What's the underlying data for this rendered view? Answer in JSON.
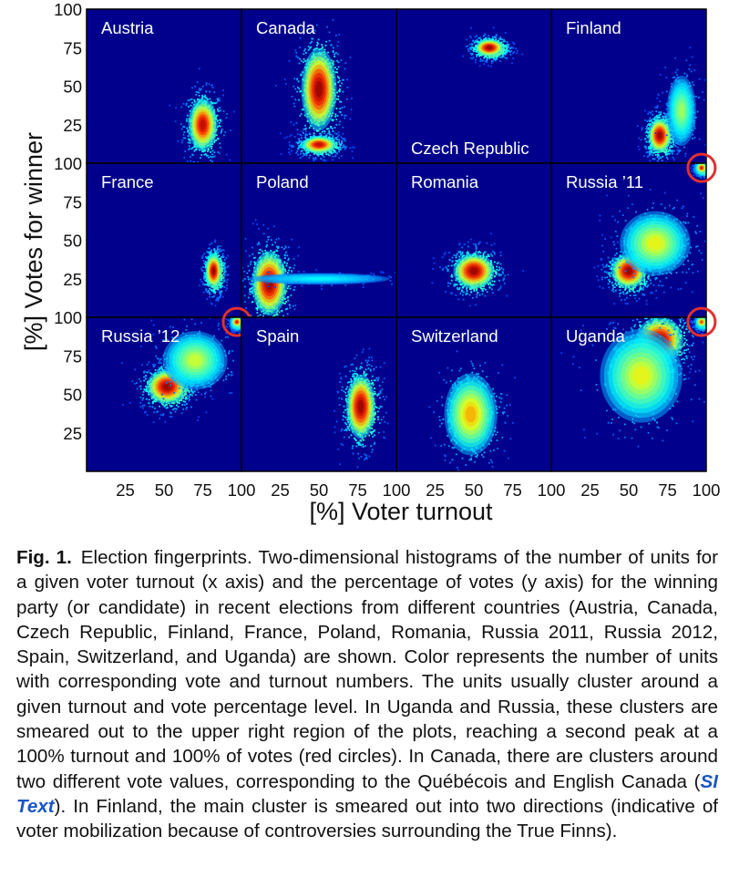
{
  "chart_data": {
    "type": "heatmap",
    "grid": {
      "rows": 3,
      "cols": 4
    },
    "xlabel": "[%] Voter turnout",
    "ylabel": "[%] Votes for winner",
    "xlim": [
      0,
      100
    ],
    "ylim": [
      0,
      100
    ],
    "x_ticks": [
      "25",
      "50",
      "75",
      "100"
    ],
    "y_ticks": [
      "25",
      "50",
      "75",
      "100"
    ],
    "colormap": [
      "#00007f",
      "#0000ff",
      "#00ffff",
      "#ffff00",
      "#ff0000",
      "#7f0000"
    ],
    "background_color": "#00008c",
    "highlight_color": "#e03030",
    "panels": [
      {
        "name": "Austria",
        "label_position": "top-left",
        "clusters": [
          {
            "x": 75,
            "y": 25,
            "sx": 5,
            "sy": 9,
            "weight": 0.9
          }
        ]
      },
      {
        "name": "Canada",
        "label_position": "top-left",
        "clusters": [
          {
            "x": 50,
            "y": 48,
            "sx": 6,
            "sy": 14,
            "weight": 1.0
          },
          {
            "x": 50,
            "y": 12,
            "sx": 6,
            "sy": 3,
            "weight": 0.9
          }
        ]
      },
      {
        "name": "Czech Republic",
        "label_position": "bottom-left",
        "clusters": [
          {
            "x": 60,
            "y": 75,
            "sx": 5,
            "sy": 3,
            "weight": 1.0
          }
        ]
      },
      {
        "name": "Finland",
        "label_position": "top-left",
        "clusters": [
          {
            "x": 70,
            "y": 18,
            "sx": 4,
            "sy": 6,
            "weight": 1.0
          },
          {
            "x": 84,
            "y": 34,
            "sx": 5,
            "sy": 12,
            "weight": 0.35
          }
        ]
      },
      {
        "name": "France",
        "label_position": "top-left",
        "clusters": [
          {
            "x": 82,
            "y": 30,
            "sx": 2.8,
            "sy": 6,
            "weight": 1.0
          }
        ]
      },
      {
        "name": "Poland",
        "label_position": "top-left",
        "clusters": [
          {
            "x": 18,
            "y": 22,
            "sx": 6,
            "sy": 11,
            "weight": 1.0
          },
          {
            "x": 50,
            "y": 25,
            "sx": 24,
            "sy": 2,
            "weight": 0.15
          }
        ]
      },
      {
        "name": "Romania",
        "label_position": "top-left",
        "clusters": [
          {
            "x": 50,
            "y": 30,
            "sx": 7,
            "sy": 6,
            "weight": 1.0
          }
        ]
      },
      {
        "name": "Russia ’11",
        "label_position": "top-left",
        "highlight": {
          "x": 97,
          "y": 97
        },
        "clusters": [
          {
            "x": 50,
            "y": 30,
            "sx": 6,
            "sy": 6,
            "weight": 1.0
          },
          {
            "x": 67,
            "y": 48,
            "sx": 12,
            "sy": 11,
            "weight": 0.45
          },
          {
            "x": 97,
            "y": 97,
            "sx": 2,
            "sy": 2,
            "weight": 0.8
          }
        ]
      },
      {
        "name": "Russia ’12",
        "label_position": "top-left",
        "highlight": {
          "x": 97,
          "y": 97
        },
        "clusters": [
          {
            "x": 52,
            "y": 55,
            "sx": 7,
            "sy": 6,
            "weight": 1.0
          },
          {
            "x": 70,
            "y": 72,
            "sx": 11,
            "sy": 10,
            "weight": 0.4
          },
          {
            "x": 97,
            "y": 97,
            "sx": 2,
            "sy": 2,
            "weight": 0.8
          }
        ]
      },
      {
        "name": "Spain",
        "label_position": "top-left",
        "clusters": [
          {
            "x": 77,
            "y": 42,
            "sx": 5,
            "sy": 11,
            "weight": 1.0
          }
        ]
      },
      {
        "name": "Switzerland",
        "label_position": "top-left",
        "clusters": [
          {
            "x": 48,
            "y": 37,
            "sx": 9,
            "sy": 14,
            "weight": 0.55
          }
        ]
      },
      {
        "name": "Uganda",
        "label_position": "top-left",
        "highlight": {
          "x": 97,
          "y": 97
        },
        "clusters": [
          {
            "x": 70,
            "y": 85,
            "sx": 8,
            "sy": 8,
            "weight": 1.0
          },
          {
            "x": 58,
            "y": 62,
            "sx": 14,
            "sy": 16,
            "weight": 0.45
          },
          {
            "x": 97,
            "y": 97,
            "sx": 2,
            "sy": 2,
            "weight": 0.7
          }
        ]
      }
    ]
  },
  "caption": {
    "label": "Fig. 1.",
    "text_before": "Election fingerprints. Two-dimensional histograms of the number of units for a given voter turnout (x axis) and the percentage of votes (y axis) for the winning party (or candidate) in recent elections from different countries (Austria, Canada, Czech Republic, Finland, France, Poland, Romania, Russia 2011, Russia 2012, Spain, Switzerland, and Uganda) are shown. Color represents the number of units with corresponding vote and turnout numbers. The units usually cluster around a given turnout and vote percentage level. In Uganda and Russia, these clusters are smeared out to the upper right region of the plots, reaching a second peak at a 100% turnout and 100% of votes (red circles). In Canada, there are clusters around two different vote values, corresponding to the Québécois and English Canada (",
    "link": "SI Text",
    "text_after": "). In Finland, the main cluster is smeared out into two directions (indicative of voter mobilization because of controversies surrounding the True Finns)."
  }
}
